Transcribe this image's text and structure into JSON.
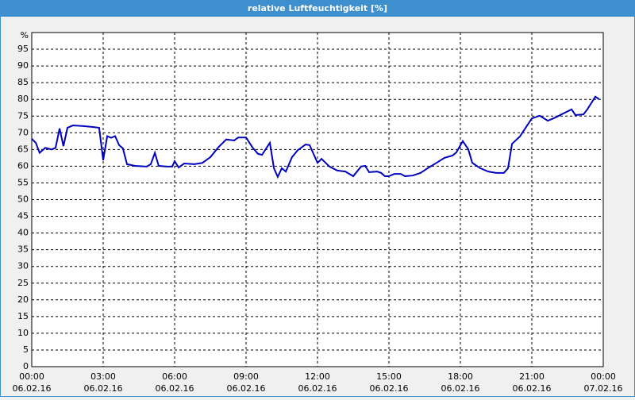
{
  "window_title": "relative Luftfeuchtigkeit [%]",
  "chart_data": {
    "type": "line",
    "y_label": "%",
    "x": [
      0,
      0.17,
      0.33,
      0.57,
      0.83,
      1,
      1.17,
      1.33,
      1.5,
      1.73,
      2.17,
      2.6,
      2.83,
      3,
      3.17,
      3.33,
      3.5,
      3.67,
      3.83,
      4,
      4.33,
      4.83,
      5,
      5.17,
      5.33,
      5.67,
      5.9,
      6,
      6.17,
      6.4,
      6.83,
      7.17,
      7.5,
      7.83,
      8.17,
      8.5,
      8.67,
      9,
      9.27,
      9.5,
      9.67,
      10,
      10.17,
      10.33,
      10.5,
      10.67,
      10.93,
      11.17,
      11.5,
      11.67,
      12,
      12.17,
      12.5,
      12.83,
      13.17,
      13.5,
      13.83,
      14,
      14.17,
      14.5,
      14.67,
      14.83,
      15,
      15.23,
      15.5,
      15.67,
      16,
      16.33,
      16.67,
      17,
      17.33,
      17.67,
      17.83,
      18.1,
      18.33,
      18.5,
      18.83,
      19.17,
      19.5,
      19.83,
      20,
      20.17,
      20.5,
      21,
      21.33,
      21.67,
      22,
      22.33,
      22.67,
      22.83,
      23.17,
      23.33,
      23.67,
      23.83
    ],
    "series": [
      {
        "name": "relative Luftfeuchtigkeit",
        "color": "#0000c0",
        "values": [
          68.2,
          67,
          64,
          65.5,
          65,
          65.5,
          71.3,
          66,
          71.5,
          72.2,
          72,
          71.7,
          71.5,
          61.8,
          69,
          68.5,
          69,
          66.3,
          65.3,
          60.6,
          60.1,
          59.9,
          60.6,
          64,
          60.1,
          59.9,
          59.9,
          61.5,
          59.6,
          60.8,
          60.6,
          61,
          62.7,
          65.6,
          68,
          67.7,
          68.6,
          68.6,
          65.6,
          63.7,
          63.4,
          67,
          59.4,
          56.8,
          59.4,
          58.4,
          62.7,
          64.8,
          66.5,
          66.3,
          61,
          62.2,
          59.9,
          58.7,
          58.4,
          57,
          59.9,
          60.1,
          58.2,
          58.4,
          58,
          57,
          57,
          57.7,
          57.7,
          57,
          57.2,
          58,
          59.6,
          61,
          62.5,
          63.2,
          64.1,
          67.5,
          65.1,
          61,
          59.4,
          58.4,
          58,
          58,
          59.4,
          66.7,
          68.9,
          74.3,
          75.1,
          73.6,
          74.6,
          75.8,
          77,
          75.3,
          75.5,
          77,
          80.8,
          80
        ]
      }
    ],
    "xlim": [
      0,
      24
    ],
    "xticks": [
      {
        "value": 0,
        "label": "00:00"
      },
      {
        "value": 3,
        "label": "03:00"
      },
      {
        "value": 6,
        "label": "06:00"
      },
      {
        "value": 9,
        "label": "09:00"
      },
      {
        "value": 12,
        "label": "12:00"
      },
      {
        "value": 15,
        "label": "15:00"
      },
      {
        "value": 18,
        "label": "18:00"
      },
      {
        "value": 21,
        "label": "21:00"
      },
      {
        "value": 24,
        "label": "00:00"
      }
    ],
    "xtick_dates": [
      "06.02.16",
      "06.02.16",
      "06.02.16",
      "06.02.16",
      "06.02.16",
      "06.02.16",
      "06.02.16",
      "06.02.16",
      "07.02.16"
    ],
    "ylim": [
      0,
      100
    ],
    "yticks": [
      0,
      5,
      10,
      15,
      20,
      25,
      30,
      35,
      40,
      45,
      50,
      55,
      60,
      65,
      70,
      75,
      80,
      85,
      90,
      95
    ],
    "grid": true
  }
}
